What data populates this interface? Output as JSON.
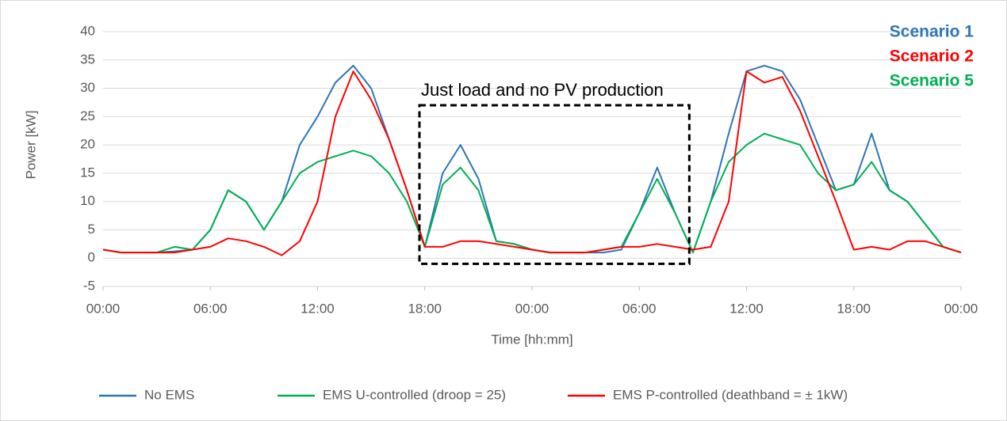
{
  "chart_data": {
    "type": "line",
    "xlabel": "Time [hh:mm]",
    "ylabel": "Power [kW]",
    "x": [
      0,
      1,
      2,
      3,
      4,
      5,
      6,
      7,
      8,
      9,
      10,
      11,
      12,
      13,
      14,
      15,
      16,
      17,
      18,
      19,
      20,
      21,
      22,
      23,
      24,
      25,
      26,
      27,
      28,
      29,
      30,
      31,
      32,
      33,
      34,
      35,
      36,
      37,
      38,
      39,
      40,
      41,
      42,
      43,
      44,
      45,
      46,
      47,
      48
    ],
    "series": [
      {
        "name": "No EMS",
        "color": "#2e75b6",
        "values": [
          1.5,
          1,
          1,
          1,
          1.2,
          1.5,
          5,
          12,
          10,
          5,
          10,
          20,
          25,
          31,
          34,
          30,
          21,
          12,
          2,
          15,
          20,
          14,
          3,
          2.5,
          1.5,
          1,
          1,
          1,
          1,
          1.5,
          8,
          16,
          8,
          1,
          10,
          22,
          33,
          34,
          33,
          28,
          20,
          12,
          13,
          22,
          12,
          10,
          6,
          2,
          1
        ]
      },
      {
        "name": "EMS U-controlled (droop = 25)",
        "color": "#00b050",
        "values": [
          1.5,
          1,
          1,
          1,
          2,
          1.5,
          5,
          12,
          10,
          5,
          10,
          15,
          17,
          18,
          19,
          18,
          15,
          10,
          2,
          13,
          16,
          12,
          3,
          2.5,
          1.5,
          1,
          1,
          1,
          1.5,
          2,
          8,
          14,
          8,
          1,
          10,
          17,
          20,
          22,
          21,
          20,
          15,
          12,
          13,
          17,
          12,
          10,
          6,
          2,
          1
        ]
      },
      {
        "name": "EMS P-controlled (deathband = ± 1kW)",
        "color": "#ff0000",
        "values": [
          1.5,
          1,
          1,
          1,
          1,
          1.5,
          2,
          3.5,
          3,
          2,
          0.5,
          3,
          10,
          25,
          33,
          28,
          21,
          12,
          2,
          2,
          3,
          3,
          2.5,
          2,
          1.5,
          1,
          1,
          1,
          1.5,
          2,
          2,
          2.5,
          2,
          1.5,
          2,
          10,
          33,
          31,
          32,
          26,
          18,
          10,
          1.5,
          2,
          1.5,
          3,
          3,
          2,
          1
        ]
      }
    ],
    "xlim": [
      0,
      48
    ],
    "xticks": [
      {
        "value": 0,
        "label": "00:00"
      },
      {
        "value": 6,
        "label": "06:00"
      },
      {
        "value": 12,
        "label": "12:00"
      },
      {
        "value": 18,
        "label": "18:00"
      },
      {
        "value": 24,
        "label": "00:00"
      },
      {
        "value": 30,
        "label": "06:00"
      },
      {
        "value": 36,
        "label": "12:00"
      },
      {
        "value": 42,
        "label": "18:00"
      },
      {
        "value": 48,
        "label": "00:00"
      }
    ],
    "ylim": [
      -5,
      40
    ],
    "yticks": [
      -5,
      0,
      5,
      10,
      15,
      20,
      25,
      30,
      35,
      40
    ],
    "grid": true,
    "legend": "bottom",
    "annotation_box": {
      "text": "Just load and no PV production",
      "xlim": [
        17.7,
        32.8
      ],
      "ylim": [
        -1,
        27
      ]
    },
    "annotations": [
      {
        "text": "Scenario 1",
        "color": "#2e75b6"
      },
      {
        "text": "Scenario 2",
        "color": "#ff0000"
      },
      {
        "text": "Scenario 5",
        "color": "#00b050"
      }
    ]
  }
}
